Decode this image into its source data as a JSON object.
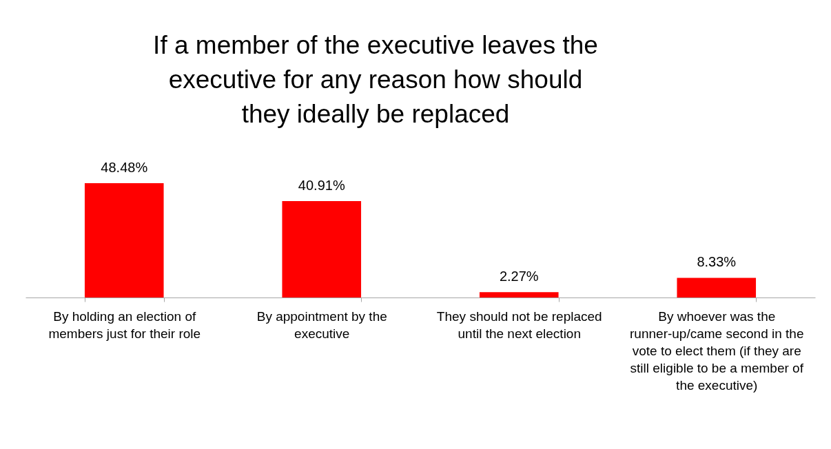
{
  "chart_data": {
    "type": "bar",
    "title": "If a member of the executive leaves the executive for any reason how should they ideally be replaced",
    "categories": [
      "By holding an election of members just for their role",
      "By appointment by the executive",
      "They should not be replaced until the next election",
      "By whoever was the runner-up/came second in the vote to elect them (if they are still eligible to be a member of the executive)"
    ],
    "values": [
      48.48,
      40.91,
      2.27,
      8.33
    ],
    "value_labels": [
      "48.48%",
      "40.91%",
      "2.27%",
      "8.33%"
    ],
    "color": "#ff0000"
  }
}
